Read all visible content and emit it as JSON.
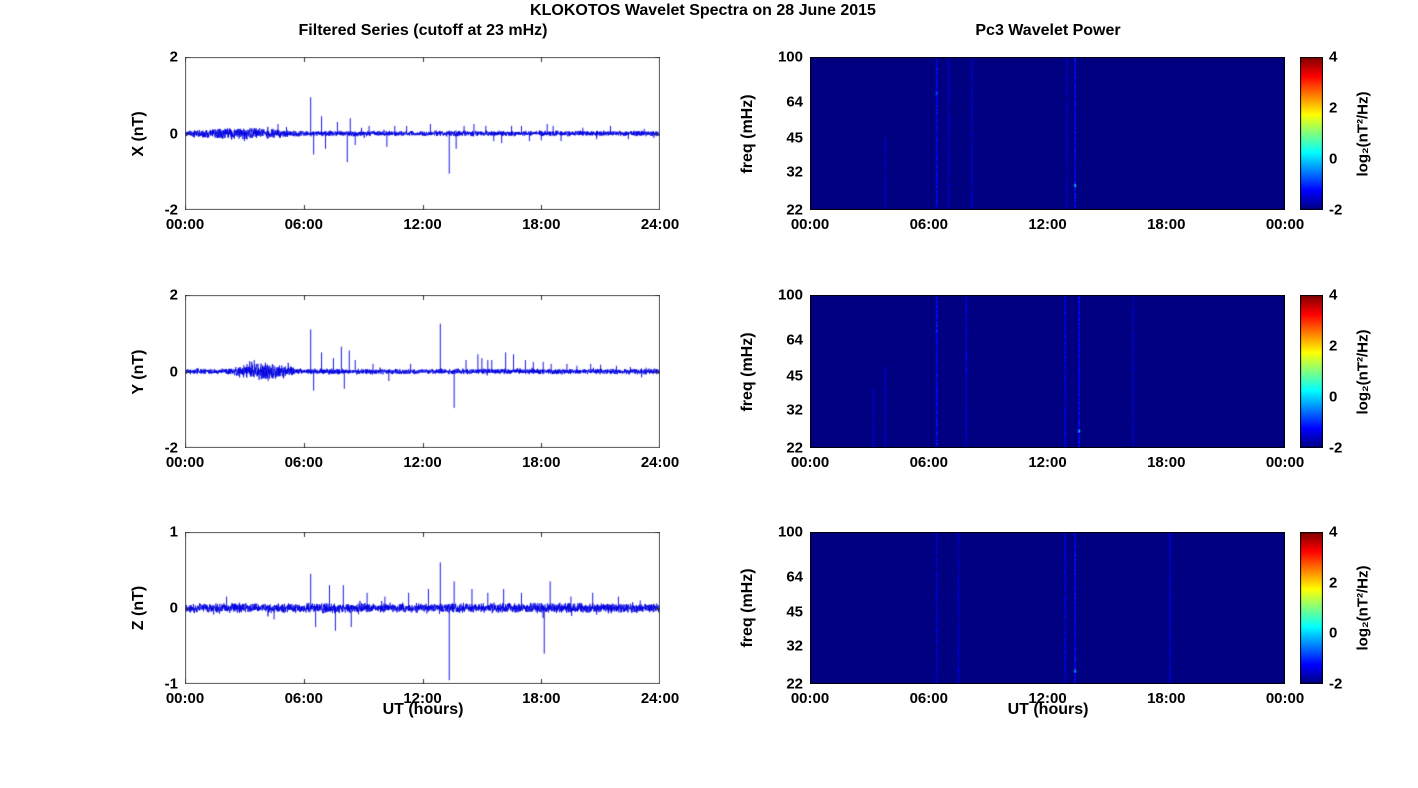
{
  "title": "KLOKOTOS Wavelet Spectra on 28 June 2015",
  "left_column_title": "Filtered Series (cutoff at 23 mHz)",
  "right_column_title": "Pc3 Wavelet Power",
  "xlabel": "UT (hours)",
  "colorbar": {
    "label": "log₂(nT²/Hz)",
    "ticks": [
      4,
      2,
      0,
      -2
    ],
    "value_range": [
      -2,
      4
    ],
    "colormap": "jet"
  },
  "chart_data": [
    {
      "type": "line",
      "name": "X filtered series",
      "ylabel": "X (nT)",
      "ylim": [
        -2,
        2
      ],
      "yticks": [
        2,
        0,
        -2
      ],
      "x_hours": [
        0,
        24
      ],
      "xtick_labels": [
        "00:00",
        "06:00",
        "12:00",
        "18:00",
        "24:00"
      ],
      "line_color": "#0000e0",
      "noise_amplitude": 0.05,
      "noise_bursts": [
        {
          "start": 0.4,
          "end": 5.2,
          "amplitude": 0.11
        }
      ],
      "spikes": [
        [
          3.0,
          -0.2
        ],
        [
          4.7,
          0.25
        ],
        [
          6.35,
          0.95
        ],
        [
          6.5,
          -0.55
        ],
        [
          6.9,
          0.45
        ],
        [
          7.1,
          -0.4
        ],
        [
          7.7,
          0.3
        ],
        [
          8.2,
          -0.75
        ],
        [
          8.35,
          0.4
        ],
        [
          8.6,
          -0.3
        ],
        [
          9.3,
          0.2
        ],
        [
          10.2,
          -0.35
        ],
        [
          10.6,
          0.2
        ],
        [
          11.2,
          0.2
        ],
        [
          12.4,
          0.25
        ],
        [
          13.35,
          -1.05
        ],
        [
          13.7,
          -0.4
        ],
        [
          14.1,
          0.2
        ],
        [
          14.6,
          0.25
        ],
        [
          15.2,
          0.2
        ],
        [
          15.6,
          -0.2
        ],
        [
          16.0,
          -0.25
        ],
        [
          16.5,
          0.2
        ],
        [
          17.0,
          0.2
        ],
        [
          17.4,
          -0.2
        ],
        [
          18.0,
          -0.18
        ],
        [
          18.3,
          0.25
        ],
        [
          18.6,
          0.2
        ],
        [
          19.0,
          -0.2
        ],
        [
          20.1,
          0.15
        ],
        [
          20.8,
          -0.15
        ],
        [
          21.5,
          0.2
        ],
        [
          22.4,
          -0.15
        ],
        [
          23.2,
          0.12
        ]
      ]
    },
    {
      "type": "line",
      "name": "Y filtered series",
      "ylabel": "Y (nT)",
      "ylim": [
        -2,
        2
      ],
      "yticks": [
        2,
        0,
        -2
      ],
      "x_hours": [
        0,
        24
      ],
      "xtick_labels": [
        "00:00",
        "06:00",
        "12:00",
        "18:00",
        "24:00"
      ],
      "line_color": "#0000e0",
      "noise_amplitude": 0.05,
      "noise_bursts": [
        {
          "start": 2.5,
          "end": 5.5,
          "amplitude": 0.15
        }
      ],
      "spikes": [
        [
          3.5,
          0.3
        ],
        [
          4.2,
          -0.25
        ],
        [
          6.35,
          1.1
        ],
        [
          6.5,
          -0.5
        ],
        [
          6.9,
          0.5
        ],
        [
          7.5,
          0.35
        ],
        [
          7.9,
          0.65
        ],
        [
          8.05,
          -0.45
        ],
        [
          8.3,
          0.55
        ],
        [
          8.6,
          0.3
        ],
        [
          9.5,
          0.2
        ],
        [
          10.3,
          -0.25
        ],
        [
          11.4,
          0.2
        ],
        [
          12.9,
          1.25
        ],
        [
          13.6,
          -0.95
        ],
        [
          14.2,
          0.3
        ],
        [
          14.8,
          0.45
        ],
        [
          15.0,
          0.35
        ],
        [
          15.3,
          0.3
        ],
        [
          15.5,
          0.3
        ],
        [
          16.2,
          0.5
        ],
        [
          16.6,
          0.45
        ],
        [
          17.2,
          0.3
        ],
        [
          17.6,
          0.25
        ],
        [
          18.1,
          0.25
        ],
        [
          18.5,
          0.2
        ],
        [
          19.3,
          0.2
        ],
        [
          19.8,
          0.15
        ],
        [
          20.5,
          0.2
        ],
        [
          21.0,
          0.18
        ],
        [
          21.8,
          0.15
        ],
        [
          22.5,
          0.12
        ],
        [
          23.3,
          0.1
        ]
      ]
    },
    {
      "type": "line",
      "name": "Z filtered series",
      "ylabel": "Z (nT)",
      "ylim": [
        -1,
        1
      ],
      "yticks": [
        1,
        0,
        -1
      ],
      "x_hours": [
        0,
        24
      ],
      "xtick_labels": [
        "00:00",
        "06:00",
        "12:00",
        "18:00",
        "24:00"
      ],
      "line_color": "#0000e0",
      "noise_amplitude": 0.045,
      "noise_bursts": [],
      "spikes": [
        [
          2.1,
          0.15
        ],
        [
          4.5,
          -0.15
        ],
        [
          6.35,
          0.45
        ],
        [
          6.6,
          -0.25
        ],
        [
          7.3,
          0.3
        ],
        [
          7.6,
          -0.3
        ],
        [
          8.0,
          0.3
        ],
        [
          8.4,
          -0.25
        ],
        [
          9.2,
          0.2
        ],
        [
          10.1,
          0.15
        ],
        [
          11.3,
          0.2
        ],
        [
          12.3,
          0.25
        ],
        [
          12.9,
          0.6
        ],
        [
          13.35,
          -0.95
        ],
        [
          13.6,
          0.35
        ],
        [
          14.5,
          0.25
        ],
        [
          15.3,
          0.2
        ],
        [
          16.1,
          0.25
        ],
        [
          17.0,
          0.2
        ],
        [
          18.15,
          -0.6
        ],
        [
          18.45,
          0.35
        ],
        [
          19.5,
          0.15
        ],
        [
          20.6,
          0.2
        ],
        [
          21.9,
          0.15
        ],
        [
          23.0,
          0.1
        ]
      ]
    },
    {
      "type": "heatmap",
      "name": "X Pc3 wavelet power",
      "ylabel": "freq (mHz)",
      "freq_range_mHz": [
        22,
        100
      ],
      "yscale": "log",
      "yticks": [
        100,
        64,
        45,
        32,
        22
      ],
      "xtick_labels": [
        "00:00",
        "06:00",
        "12:00",
        "18:00",
        "00:00"
      ],
      "value_range": [
        -2,
        4
      ],
      "background_value": -2,
      "colormap": "jet",
      "streaks": [
        {
          "t": 3.8,
          "value": -1.6,
          "f_top": 45
        },
        {
          "t": 6.4,
          "value": -1.35
        },
        {
          "t": 7.0,
          "value": -1.6
        },
        {
          "t": 8.2,
          "value": -1.6
        },
        {
          "t": 13.0,
          "value": -1.65
        },
        {
          "t": 13.4,
          "value": -1.3
        }
      ],
      "specks": [
        {
          "t": 13.4,
          "f": 28,
          "value": -0.3
        },
        {
          "t": 6.4,
          "f": 70,
          "value": -0.9
        }
      ]
    },
    {
      "type": "heatmap",
      "name": "Y Pc3 wavelet power",
      "ylabel": "freq (mHz)",
      "freq_range_mHz": [
        22,
        100
      ],
      "yscale": "log",
      "yticks": [
        100,
        64,
        45,
        32,
        22
      ],
      "xtick_labels": [
        "00:00",
        "06:00",
        "12:00",
        "18:00",
        "00:00"
      ],
      "value_range": [
        -2,
        4
      ],
      "background_value": -2,
      "colormap": "jet",
      "streaks": [
        {
          "t": 3.2,
          "value": -1.55,
          "f_top": 40
        },
        {
          "t": 3.8,
          "value": -1.6,
          "f_top": 50
        },
        {
          "t": 6.4,
          "value": -1.3
        },
        {
          "t": 7.9,
          "value": -1.45
        },
        {
          "t": 12.9,
          "value": -1.4
        },
        {
          "t": 13.6,
          "value": -1.3
        },
        {
          "t": 16.3,
          "value": -1.6
        }
      ],
      "specks": [
        {
          "t": 13.6,
          "f": 26,
          "value": -0.3
        },
        {
          "t": 6.4,
          "f": 70,
          "value": -1.0
        }
      ]
    },
    {
      "type": "heatmap",
      "name": "Z Pc3 wavelet power",
      "ylabel": "freq (mHz)",
      "freq_range_mHz": [
        22,
        100
      ],
      "yscale": "log",
      "yticks": [
        100,
        64,
        45,
        32,
        22
      ],
      "xtick_labels": [
        "00:00",
        "06:00",
        "12:00",
        "18:00",
        "00:00"
      ],
      "value_range": [
        -2,
        4
      ],
      "background_value": -2,
      "colormap": "jet",
      "streaks": [
        {
          "t": 6.4,
          "value": -1.55
        },
        {
          "t": 7.5,
          "value": -1.6
        },
        {
          "t": 12.9,
          "value": -1.45
        },
        {
          "t": 13.4,
          "value": -1.3
        },
        {
          "t": 18.2,
          "value": -1.5
        }
      ],
      "specks": [
        {
          "t": 13.4,
          "f": 25,
          "value": -0.4
        }
      ]
    }
  ]
}
